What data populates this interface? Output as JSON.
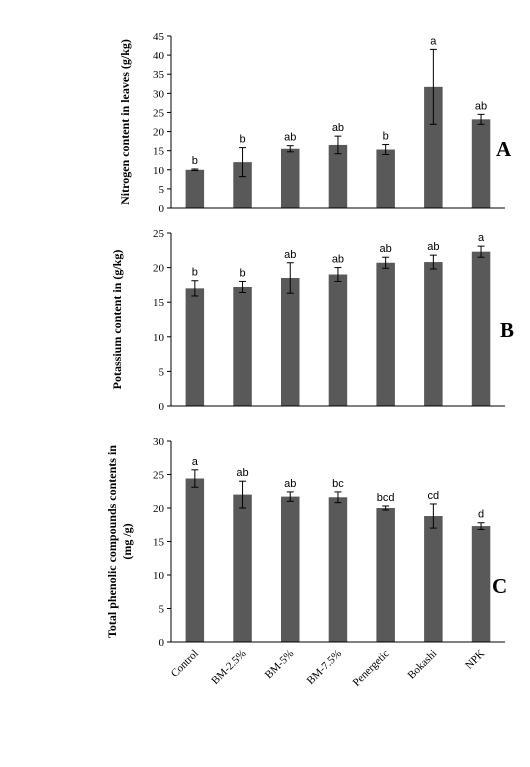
{
  "figure": {
    "categories": [
      "Control",
      "BM-2.5%",
      "BM-5%",
      "BM-7.5%",
      "Penergetic",
      "Bokashi",
      "NPK"
    ],
    "bar_color": "#595959",
    "axis_color": "#000000"
  },
  "chart_data": [
    {
      "type": "bar",
      "panel": "A",
      "ylabel": "Nitrogen content in leaves (g/kg)",
      "ylim": [
        0,
        45
      ],
      "yticks": [
        0,
        5,
        10,
        15,
        20,
        25,
        30,
        35,
        40,
        45
      ],
      "categories": [
        "Control",
        "BM-2.5%",
        "BM-5%",
        "BM-7.5%",
        "Penergetic",
        "Bokashi",
        "NPK"
      ],
      "values": [
        10.0,
        12.0,
        15.5,
        16.5,
        15.3,
        31.7,
        23.2
      ],
      "errors": [
        0.2,
        3.8,
        0.8,
        2.3,
        1.3,
        9.8,
        1.3
      ],
      "letters": [
        "b",
        "b",
        "ab",
        "ab",
        "b",
        "a",
        "ab"
      ]
    },
    {
      "type": "bar",
      "panel": "B",
      "ylabel": "Potassium content in (g/kg)",
      "ylim": [
        0,
        25
      ],
      "yticks": [
        0,
        5,
        10,
        15,
        20,
        25
      ],
      "categories": [
        "Control",
        "BM-2.5%",
        "BM-5%",
        "BM-7.5%",
        "Penergetic",
        "Bokashi",
        "NPK"
      ],
      "values": [
        17.0,
        17.2,
        18.5,
        19.0,
        20.7,
        20.8,
        22.3
      ],
      "errors": [
        1.1,
        0.8,
        2.2,
        1.0,
        0.8,
        1.0,
        0.8
      ],
      "letters": [
        "b",
        "b",
        "ab",
        "ab",
        "ab",
        "ab",
        "a"
      ]
    },
    {
      "type": "bar",
      "panel": "C",
      "ylabel_lines": [
        "Total phenolic compounds  contents in",
        "(mg /g)"
      ],
      "ylim": [
        0,
        30
      ],
      "yticks": [
        0,
        5,
        10,
        15,
        20,
        25,
        30
      ],
      "categories": [
        "Control",
        "BM-2.5%",
        "BM-5%",
        "BM-7.5%",
        "Penergetic",
        "Bokashi",
        "NPK"
      ],
      "values": [
        24.4,
        22.0,
        21.7,
        21.6,
        20.0,
        18.8,
        17.3
      ],
      "errors": [
        1.3,
        2.0,
        0.7,
        0.8,
        0.3,
        1.8,
        0.5
      ],
      "letters": [
        "a",
        "ab",
        "ab",
        "bc",
        "bcd",
        "cd",
        "d"
      ]
    }
  ]
}
